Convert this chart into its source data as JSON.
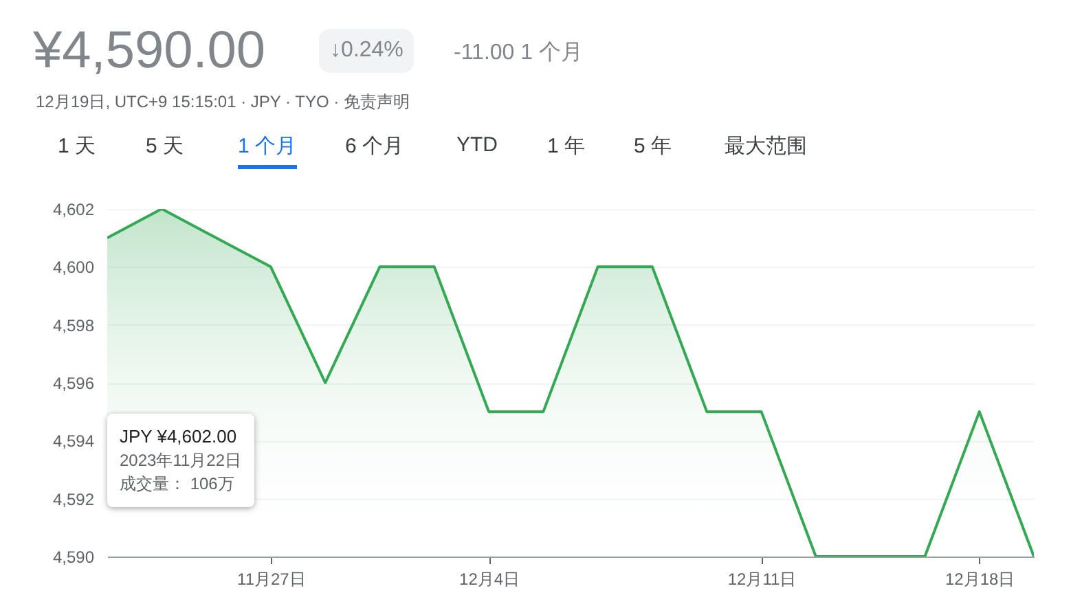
{
  "chart_data": {
    "type": "area",
    "title": "¥4,590.00",
    "subtitle": "12月19日, UTC+9 15:15:01 · JPY · TYO · 免责声明",
    "categories": [
      null,
      null,
      null,
      "11月27日",
      null,
      null,
      null,
      "12月4日",
      null,
      null,
      null,
      null,
      "12月11日",
      null,
      null,
      null,
      "12月18日",
      null
    ],
    "series": [
      {
        "color": "#34a853",
        "values": [
          4601,
          4602,
          4601,
          4600,
          4596,
          4600,
          4600,
          4595,
          4595,
          4600,
          4600,
          4595,
          4595,
          4590,
          4590,
          4590,
          4595,
          4590
        ]
      }
    ],
    "ylim": [
      4590,
      4602
    ],
    "yticks": [
      {
        "value": 4590,
        "label": "4,590"
      },
      {
        "value": 4592,
        "label": "4,592"
      },
      {
        "value": 4594,
        "label": "4,594"
      },
      {
        "value": 4596,
        "label": "4,596"
      },
      {
        "value": 4598,
        "label": "4,598"
      },
      {
        "value": 4600,
        "label": "4,600"
      },
      {
        "value": 4602,
        "label": "4,602"
      }
    ],
    "grid": "y",
    "annotations": [
      "↓0.24%",
      "-11.00 1 个月",
      "1 天",
      "5 天",
      "1 个月",
      "6 个月",
      "YTD",
      "1 年",
      "5 年",
      "最大范围",
      "JPY ¥4,602.00",
      "2023年11月22日",
      "成交量：  106万"
    ]
  }
}
